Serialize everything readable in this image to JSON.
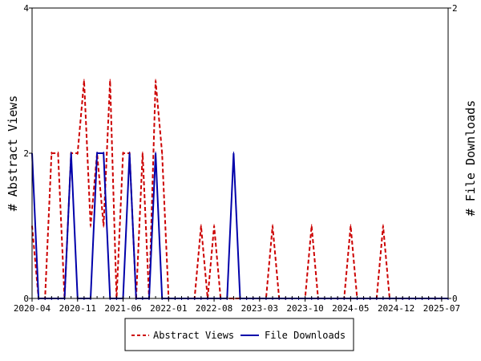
{
  "chart_data": {
    "type": "line",
    "title": "",
    "ylabel_left": "# Abstract Views",
    "ylabel_right": "# File Downloads",
    "xlabel": "",
    "x_ticks": [
      "2020-04",
      "2020-11",
      "2021-06",
      "2022-01",
      "2022-08",
      "2023-03",
      "2023-10",
      "2024-05",
      "2024-12",
      "2025-07"
    ],
    "ylim_left": [
      0,
      4
    ],
    "yticks_left": [
      "0",
      "2",
      "4"
    ],
    "ylim_right": [
      0,
      2
    ],
    "yticks_right": [
      "0",
      "2"
    ],
    "grid": false,
    "legend_position": "bottom",
    "x_start_month": "2020-04",
    "series": [
      {
        "name": "Abstract Views",
        "axis": "left",
        "color": "#cc0000",
        "style": "dashed",
        "points": [
          [
            0,
            1
          ],
          [
            1,
            0
          ],
          [
            2,
            0
          ],
          [
            3,
            2
          ],
          [
            4,
            2
          ],
          [
            5,
            0
          ],
          [
            6,
            2
          ],
          [
            7,
            2
          ],
          [
            8,
            3
          ],
          [
            9,
            1
          ],
          [
            10,
            2
          ],
          [
            11,
            1
          ],
          [
            12,
            3
          ],
          [
            13,
            0
          ],
          [
            14,
            2
          ],
          [
            15,
            2
          ],
          [
            16,
            0
          ],
          [
            17,
            2
          ],
          [
            18,
            0
          ],
          [
            19,
            3
          ],
          [
            20,
            2
          ],
          [
            21,
            0
          ],
          [
            22,
            0
          ],
          [
            23,
            0
          ],
          [
            24,
            0
          ],
          [
            25,
            0
          ],
          [
            26,
            1
          ],
          [
            27,
            0
          ],
          [
            28,
            1
          ],
          [
            29,
            0
          ],
          [
            30,
            0
          ],
          [
            31,
            0
          ],
          [
            32,
            0
          ],
          [
            33,
            0
          ],
          [
            34,
            0
          ],
          [
            35,
            0
          ],
          [
            36,
            0
          ],
          [
            37,
            1
          ],
          [
            38,
            0
          ],
          [
            39,
            0
          ],
          [
            40,
            0
          ],
          [
            41,
            0
          ],
          [
            42,
            0
          ],
          [
            43,
            1
          ],
          [
            44,
            0
          ],
          [
            45,
            0
          ],
          [
            46,
            0
          ],
          [
            47,
            0
          ],
          [
            48,
            0
          ],
          [
            49,
            1
          ],
          [
            50,
            0
          ],
          [
            51,
            0
          ],
          [
            52,
            0
          ],
          [
            53,
            0
          ],
          [
            54,
            1
          ],
          [
            55,
            0
          ],
          [
            56,
            0
          ],
          [
            57,
            0
          ],
          [
            58,
            0
          ],
          [
            59,
            0
          ],
          [
            60,
            0
          ],
          [
            61,
            0
          ],
          [
            62,
            0
          ],
          [
            63,
            0
          ],
          [
            64,
            0
          ]
        ]
      },
      {
        "name": "File Downloads",
        "axis": "right",
        "color": "#0000aa",
        "style": "solid",
        "points": [
          [
            0,
            1
          ],
          [
            1,
            0
          ],
          [
            2,
            0
          ],
          [
            3,
            0
          ],
          [
            4,
            0
          ],
          [
            5,
            0
          ],
          [
            6,
            1
          ],
          [
            7,
            0
          ],
          [
            8,
            0
          ],
          [
            9,
            0
          ],
          [
            10,
            1
          ],
          [
            11,
            1
          ],
          [
            12,
            0
          ],
          [
            13,
            0
          ],
          [
            14,
            0
          ],
          [
            15,
            1
          ],
          [
            16,
            0
          ],
          [
            17,
            0
          ],
          [
            18,
            0
          ],
          [
            19,
            1
          ],
          [
            20,
            0
          ],
          [
            21,
            0
          ],
          [
            22,
            0
          ],
          [
            23,
            0
          ],
          [
            24,
            0
          ],
          [
            25,
            0
          ],
          [
            26,
            0
          ],
          [
            27,
            0
          ],
          [
            28,
            0
          ],
          [
            29,
            0
          ],
          [
            30,
            0
          ],
          [
            31,
            1
          ],
          [
            32,
            0
          ],
          [
            33,
            0
          ],
          [
            34,
            0
          ],
          [
            35,
            0
          ],
          [
            36,
            0
          ],
          [
            37,
            0
          ],
          [
            38,
            0
          ],
          [
            39,
            0
          ],
          [
            40,
            0
          ],
          [
            41,
            0
          ],
          [
            42,
            0
          ],
          [
            43,
            0
          ],
          [
            44,
            0
          ],
          [
            45,
            0
          ],
          [
            46,
            0
          ],
          [
            47,
            0
          ],
          [
            48,
            0
          ],
          [
            49,
            0
          ],
          [
            50,
            0
          ],
          [
            51,
            0
          ],
          [
            52,
            0
          ],
          [
            53,
            0
          ],
          [
            54,
            0
          ],
          [
            55,
            0
          ],
          [
            56,
            0
          ],
          [
            57,
            0
          ],
          [
            58,
            0
          ],
          [
            59,
            0
          ],
          [
            60,
            0
          ],
          [
            61,
            0
          ],
          [
            62,
            0
          ],
          [
            63,
            0
          ],
          [
            64,
            0
          ]
        ]
      }
    ]
  }
}
